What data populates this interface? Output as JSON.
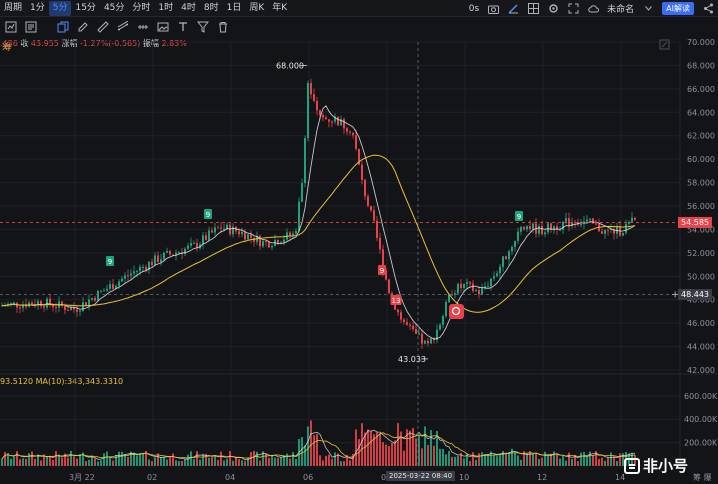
{
  "toolbar": {
    "period_label": "周期",
    "timeframes": [
      "1分",
      "5分",
      "15分",
      "45分",
      "分时",
      "1时",
      "4时",
      "8时",
      "1日",
      "周K",
      "年K"
    ],
    "active_timeframe": "5分",
    "zero_s": "0s",
    "unnamed_label": "未命名",
    "ai_button": "AI解读"
  },
  "info": {
    "chou_label": "筹",
    "prefix": ".436",
    "close_label": "收",
    "close_value": "43.955",
    "change_label": "涨幅",
    "change_value": "-1.27%(-0.565)",
    "amp_label": "振幅",
    "amp_value": "2.83%"
  },
  "volume_info": {
    "prefix": "93.5120",
    "ma_text": "MA(10):343,343.3310"
  },
  "price_axis": [
    "70.000",
    "68.000",
    "66.000",
    "64.000",
    "62.000",
    "60.000",
    "58.000",
    "56.000",
    "54.000",
    "52.000",
    "50.000",
    "48.000",
    "46.000",
    "44.000",
    "42.000"
  ],
  "volume_axis": [
    "600.00K",
    "400.00K",
    "200.00K"
  ],
  "x_axis": [
    "3月 22",
    "02",
    "04",
    "06",
    "08",
    "10",
    "12",
    "14"
  ],
  "date_badge": "2025-03-22 08:40",
  "bottom_right": "筹 爆",
  "annotations": {
    "high": "68.000",
    "low": "43.033",
    "current_tag": "54.585",
    "cursor_tag": "48.443",
    "td_markers": [
      "9",
      "9",
      "9",
      "9",
      "13"
    ]
  },
  "watermark": "非小号",
  "colors": {
    "up": "#1fa37f",
    "down": "#e8424a",
    "ma_fast": "#e6e8ec",
    "ma_slow": "#e6c431",
    "accent": "#4f8bff"
  }
}
